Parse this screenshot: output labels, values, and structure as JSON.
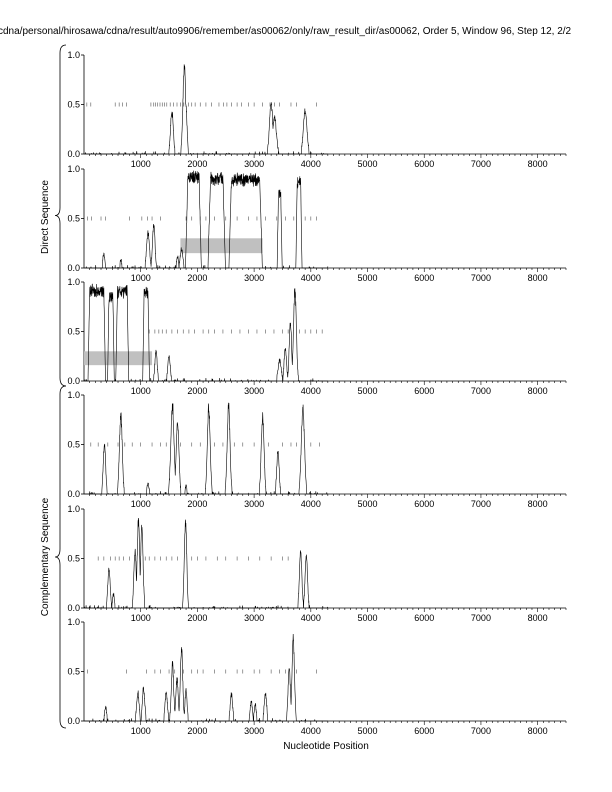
{
  "header": {
    "title": "cdna/personal/hirosawa/cdna/result/auto9906/remember/as00062/only/raw_result_dir/as00062, Order 5, Window 96, Step 12, 2/2"
  },
  "groups": {
    "direct": "Direct Sequence",
    "complementary": "Complementary Sequence"
  },
  "colors": {
    "line": "#000000",
    "bar": "#c0c0c0",
    "axis": "#000000"
  },
  "chart_data": {
    "type": "line",
    "xlabel": "Nucleotide Position",
    "xlim": [
      0,
      8500
    ],
    "ylim": [
      0,
      1
    ],
    "x_ticks": [
      1000,
      2000,
      3000,
      4000,
      5000,
      6000,
      7000,
      8000
    ],
    "y_ticks": [
      0.0,
      0.5,
      1.0
    ],
    "y_tick_labels": [
      "0.0",
      "0.5",
      "1.0"
    ],
    "panels": [
      {
        "group": "direct",
        "peaks": [
          {
            "x": 1230,
            "y": 0.02,
            "w": 30
          },
          {
            "x": 1550,
            "y": 0.45,
            "w": 35
          },
          {
            "x": 1770,
            "y": 0.93,
            "w": 35
          },
          {
            "x": 1800,
            "y": 0.5,
            "w": 25
          },
          {
            "x": 3300,
            "y": 0.55,
            "w": 40
          },
          {
            "x": 3360,
            "y": 0.4,
            "w": 45
          },
          {
            "x": 3900,
            "y": 0.45,
            "w": 45
          }
        ],
        "marks": {
          "y": 0.5,
          "x": [
            50,
            120,
            550,
            620,
            680,
            750,
            1180,
            1230,
            1260,
            1300,
            1340,
            1380,
            1420,
            1460,
            1520,
            1580,
            1640,
            1700,
            1760,
            1840,
            1900,
            1960,
            2050,
            2150,
            2250,
            2380,
            2460,
            2520,
            2600,
            2700,
            2780,
            2900,
            3000,
            3150,
            3280,
            3360,
            3450,
            3650,
            3750,
            4100
          ]
        },
        "bars": []
      },
      {
        "group": "direct",
        "peaks": [
          {
            "x": 350,
            "y": 0.15,
            "w": 25
          },
          {
            "x": 650,
            "y": 0.08,
            "w": 25
          },
          {
            "x": 1130,
            "y": 0.38,
            "w": 35
          },
          {
            "x": 1230,
            "y": 0.48,
            "w": 30
          },
          {
            "x": 1430,
            "y": 0.05,
            "w": 25
          },
          {
            "x": 1650,
            "y": 0.12,
            "w": 25
          },
          {
            "x": 1720,
            "y": 0.2,
            "w": 35
          }
        ],
        "plateaus": [
          {
            "x1": 1830,
            "x2": 2030,
            "y": 0.97,
            "ramp": 40
          },
          {
            "x1": 2230,
            "x2": 2450,
            "y": 0.96,
            "ramp": 45
          },
          {
            "x1": 2600,
            "x2": 3100,
            "y": 0.95,
            "ramp": 45
          },
          {
            "x1": 3430,
            "x2": 3470,
            "y": 0.8,
            "ramp": 25
          },
          {
            "x1": 3760,
            "x2": 3820,
            "y": 0.92,
            "ramp": 25
          }
        ],
        "marks": {
          "y": 0.5,
          "x": [
            60,
            130,
            300,
            380,
            800,
            1020,
            1120,
            1200,
            1350,
            1800,
            1900,
            2050,
            2150,
            2300,
            2500,
            2700,
            2900,
            3050,
            3200,
            3400,
            3550,
            3700,
            3900,
            4000,
            4100
          ]
        },
        "bars": [
          {
            "x1": 1700,
            "x2": 3150,
            "y1": 0.15,
            "y2": 0.3
          }
        ]
      },
      {
        "group": "direct",
        "peaks": [
          {
            "x": 1270,
            "y": 0.3,
            "w": 30
          },
          {
            "x": 1500,
            "y": 0.28,
            "w": 30
          },
          {
            "x": 3450,
            "y": 0.22,
            "w": 40
          },
          {
            "x": 3550,
            "y": 0.35,
            "w": 30
          },
          {
            "x": 3640,
            "y": 0.62,
            "w": 30
          },
          {
            "x": 3720,
            "y": 0.97,
            "w": 35
          }
        ],
        "plateaus": [
          {
            "x1": 100,
            "x2": 350,
            "y": 0.97,
            "ramp": 30
          },
          {
            "x1": 440,
            "x2": 510,
            "y": 0.9,
            "ramp": 25
          },
          {
            "x1": 590,
            "x2": 760,
            "y": 0.96,
            "ramp": 30
          },
          {
            "x1": 1060,
            "x2": 1130,
            "y": 0.95,
            "ramp": 25
          }
        ],
        "marks": {
          "y": 0.5,
          "x": [
            1150,
            1250,
            1320,
            1380,
            1450,
            1550,
            1650,
            1750,
            1850,
            1950,
            2100,
            2200,
            2300,
            2450,
            2600,
            2750,
            2900,
            3050,
            3200,
            3350,
            3500,
            3600,
            3800,
            3900,
            4000,
            4100,
            4200
          ]
        },
        "bars": [
          {
            "x1": 0,
            "x2": 1200,
            "y1": 0.16,
            "y2": 0.3
          }
        ]
      },
      {
        "group": "complementary",
        "peaks": [
          {
            "x": 360,
            "y": 0.52,
            "w": 30
          },
          {
            "x": 650,
            "y": 0.85,
            "w": 35
          },
          {
            "x": 1130,
            "y": 0.1,
            "w": 30
          },
          {
            "x": 1560,
            "y": 0.95,
            "w": 40
          },
          {
            "x": 1650,
            "y": 0.75,
            "w": 35
          },
          {
            "x": 1800,
            "y": 0.08,
            "w": 25
          },
          {
            "x": 2200,
            "y": 0.92,
            "w": 35
          },
          {
            "x": 2550,
            "y": 0.97,
            "w": 35
          },
          {
            "x": 2950,
            "y": 0.05,
            "w": 25
          },
          {
            "x": 3150,
            "y": 0.82,
            "w": 35
          },
          {
            "x": 3420,
            "y": 0.45,
            "w": 30
          },
          {
            "x": 3860,
            "y": 0.9,
            "w": 40
          }
        ],
        "marks": {
          "y": 0.5,
          "x": [
            120,
            250,
            420,
            600,
            720,
            850,
            1000,
            1200,
            1350,
            1450,
            1700,
            1900,
            2050,
            2300,
            2450,
            2650,
            2800,
            3000,
            3250,
            3500,
            3650,
            3750,
            4000,
            4150
          ]
        },
        "bars": []
      },
      {
        "group": "complementary",
        "peaks": [
          {
            "x": 440,
            "y": 0.42,
            "w": 30
          },
          {
            "x": 520,
            "y": 0.15,
            "w": 25
          },
          {
            "x": 900,
            "y": 0.6,
            "w": 30
          },
          {
            "x": 960,
            "y": 0.95,
            "w": 30
          },
          {
            "x": 1020,
            "y": 0.88,
            "w": 30
          },
          {
            "x": 1790,
            "y": 0.92,
            "w": 30
          },
          {
            "x": 3700,
            "y": 0.05,
            "w": 25
          },
          {
            "x": 3820,
            "y": 0.6,
            "w": 30
          },
          {
            "x": 3920,
            "y": 0.55,
            "w": 30
          }
        ],
        "marks": {
          "y": 0.5,
          "x": [
            250,
            350,
            470,
            550,
            620,
            700,
            800,
            1080,
            1150,
            1250,
            1350,
            1450,
            1550,
            1650,
            1900,
            2000,
            2150,
            2350,
            2500,
            2700,
            2900,
            3100,
            3300,
            3500,
            3600
          ]
        },
        "bars": []
      },
      {
        "group": "complementary",
        "peaks": [
          {
            "x": 380,
            "y": 0.15,
            "w": 25
          },
          {
            "x": 950,
            "y": 0.3,
            "w": 30
          },
          {
            "x": 1050,
            "y": 0.35,
            "w": 30
          },
          {
            "x": 1450,
            "y": 0.3,
            "w": 30
          },
          {
            "x": 1560,
            "y": 0.6,
            "w": 30
          },
          {
            "x": 1640,
            "y": 0.45,
            "w": 30
          },
          {
            "x": 1720,
            "y": 0.78,
            "w": 30
          },
          {
            "x": 1800,
            "y": 0.35,
            "w": 25
          },
          {
            "x": 2200,
            "y": 0.05,
            "w": 25
          },
          {
            "x": 2600,
            "y": 0.28,
            "w": 30
          },
          {
            "x": 2950,
            "y": 0.2,
            "w": 30
          },
          {
            "x": 3020,
            "y": 0.18,
            "w": 25
          },
          {
            "x": 3200,
            "y": 0.3,
            "w": 30
          },
          {
            "x": 3620,
            "y": 0.55,
            "w": 30
          },
          {
            "x": 3690,
            "y": 0.9,
            "w": 30
          }
        ],
        "marks": {
          "y": 0.5,
          "x": [
            60,
            750,
            1100,
            1250,
            1350,
            1500,
            1600,
            1750,
            1900,
            2000,
            2100,
            2300,
            2500,
            2700,
            2800,
            3000,
            3100,
            3300,
            3450,
            3550,
            3750,
            4100
          ]
        },
        "bars": []
      }
    ]
  }
}
